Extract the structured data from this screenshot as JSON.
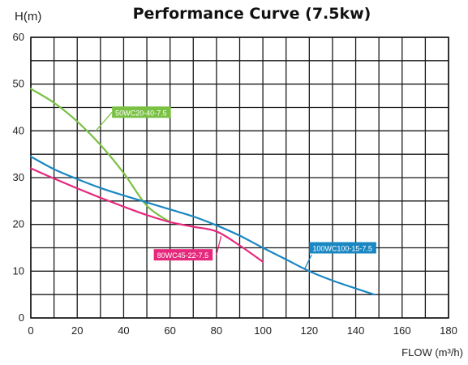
{
  "chart_data": {
    "type": "line",
    "title": "Performance Curve (7.5kw)",
    "xlabel": "FLOW (m³/h)",
    "ylabel": "H(m)",
    "xlim": [
      0,
      180
    ],
    "ylim": [
      0,
      60
    ],
    "x_ticks": [
      0,
      20,
      40,
      60,
      80,
      100,
      120,
      140,
      160,
      180
    ],
    "y_ticks": [
      0,
      10,
      20,
      30,
      40,
      50,
      60
    ],
    "x_grid_step": 10,
    "y_grid_step": 5,
    "grid": true,
    "series": [
      {
        "name": "50WC20-40-7.5",
        "color": "#7ac143",
        "x": [
          0,
          10,
          20,
          30,
          40,
          50,
          60
        ],
        "y": [
          49,
          46,
          42,
          37,
          31,
          24,
          20.5
        ],
        "label_at": [
          35,
          44
        ]
      },
      {
        "name": "80WC45-22-7.5",
        "color": "#e6287c",
        "x": [
          0,
          10,
          20,
          30,
          40,
          50,
          60,
          70,
          80,
          90,
          100
        ],
        "y": [
          32,
          29.8,
          27.7,
          25.7,
          23.8,
          22,
          20.5,
          19.5,
          18.5,
          15.5,
          12
        ],
        "label_at": [
          53,
          13.5
        ]
      },
      {
        "name": "100WC100-15-7.5",
        "color": "#1a87c2",
        "x": [
          0,
          10,
          20,
          30,
          40,
          50,
          60,
          70,
          80,
          90,
          100,
          110,
          120,
          130,
          140,
          148
        ],
        "y": [
          34.5,
          31.8,
          29.7,
          27.8,
          26.2,
          24.7,
          23.2,
          21.7,
          19.8,
          17.6,
          15,
          12.5,
          10,
          8,
          6.3,
          5
        ],
        "label_at": [
          120,
          15
        ]
      }
    ]
  }
}
